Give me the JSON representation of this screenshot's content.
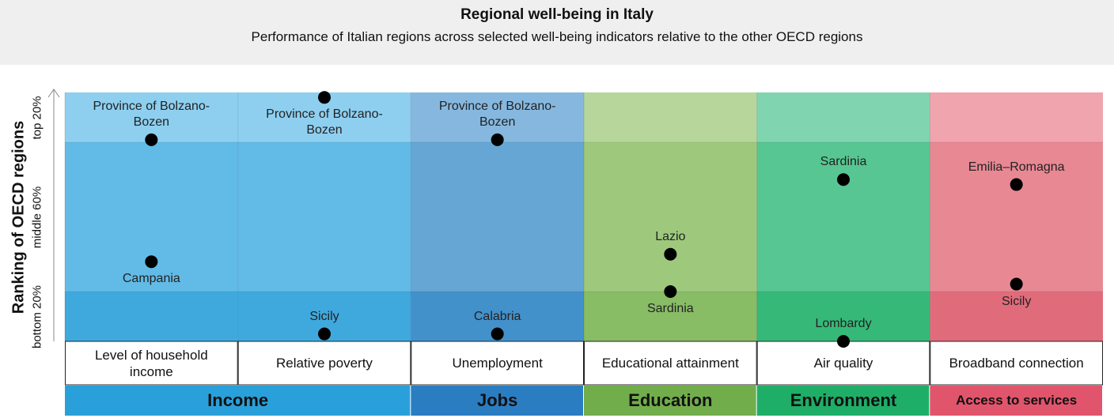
{
  "chart_data": {
    "type": "dot",
    "title": "Regional well-being in Italy",
    "subtitle": "Performance of Italian regions across selected well-being indicators relative to the other OECD regions",
    "y_label": "Ranking of OECD regions",
    "ylim": [
      0,
      100
    ],
    "bands": [
      {
        "label": "bottom 20%",
        "from": 0,
        "to": 20
      },
      {
        "label": "middle 60%",
        "from": 20,
        "to": 80
      },
      {
        "label": "top 20%",
        "from": 80,
        "to": 100
      }
    ],
    "groups": [
      {
        "name": "Income",
        "color": "#29a0da",
        "band_colors": [
          "#3fa9de",
          "#62bbe6",
          "#8ecff0"
        ],
        "indicators": [
          {
            "label": "Level of household income",
            "points": [
              {
                "region": "Province of Bolzano-Bozen",
                "value": 81
              },
              {
                "region": "Campania",
                "value": 32
              }
            ]
          },
          {
            "label": "Relative poverty",
            "points": [
              {
                "region": "Province of Bolzano-Bozen",
                "value": 98
              },
              {
                "region": "Sicily",
                "value": 3
              }
            ]
          }
        ]
      },
      {
        "name": "Jobs",
        "color": "#2b7dc2",
        "band_colors": [
          "#4391cb",
          "#66a6d4",
          "#86b8df"
        ],
        "indicators": [
          {
            "label": "Unemployment",
            "points": [
              {
                "region": "Province of Bolzano-Bozen",
                "value": 81
              },
              {
                "region": "Calabria",
                "value": 3
              }
            ]
          }
        ]
      },
      {
        "name": "Education",
        "color": "#72ad4c",
        "band_colors": [
          "#88bc65",
          "#9ec97d",
          "#b6d69c"
        ],
        "indicators": [
          {
            "label": "Educational attainment",
            "points": [
              {
                "region": "Lazio",
                "value": 35
              },
              {
                "region": "Sardinia",
                "value": 20
              }
            ]
          }
        ]
      },
      {
        "name": "Environment",
        "color": "#1fae68",
        "band_colors": [
          "#36b978",
          "#57c692",
          "#80d5b0"
        ],
        "indicators": [
          {
            "label": "Air quality",
            "points": [
              {
                "region": "Sardinia",
                "value": 65
              },
              {
                "region": "Lombardy",
                "value": 0
              }
            ]
          }
        ]
      },
      {
        "name": "Access to services",
        "color": "#e0556b",
        "band_colors": [
          "#e06c7b",
          "#e88893",
          "#f0a4ad"
        ],
        "indicators": [
          {
            "label": "Broadband connection",
            "points": [
              {
                "region": "Emilia–Romagna",
                "value": 63
              },
              {
                "region": "Sicily",
                "value": 23
              }
            ]
          }
        ]
      }
    ]
  }
}
